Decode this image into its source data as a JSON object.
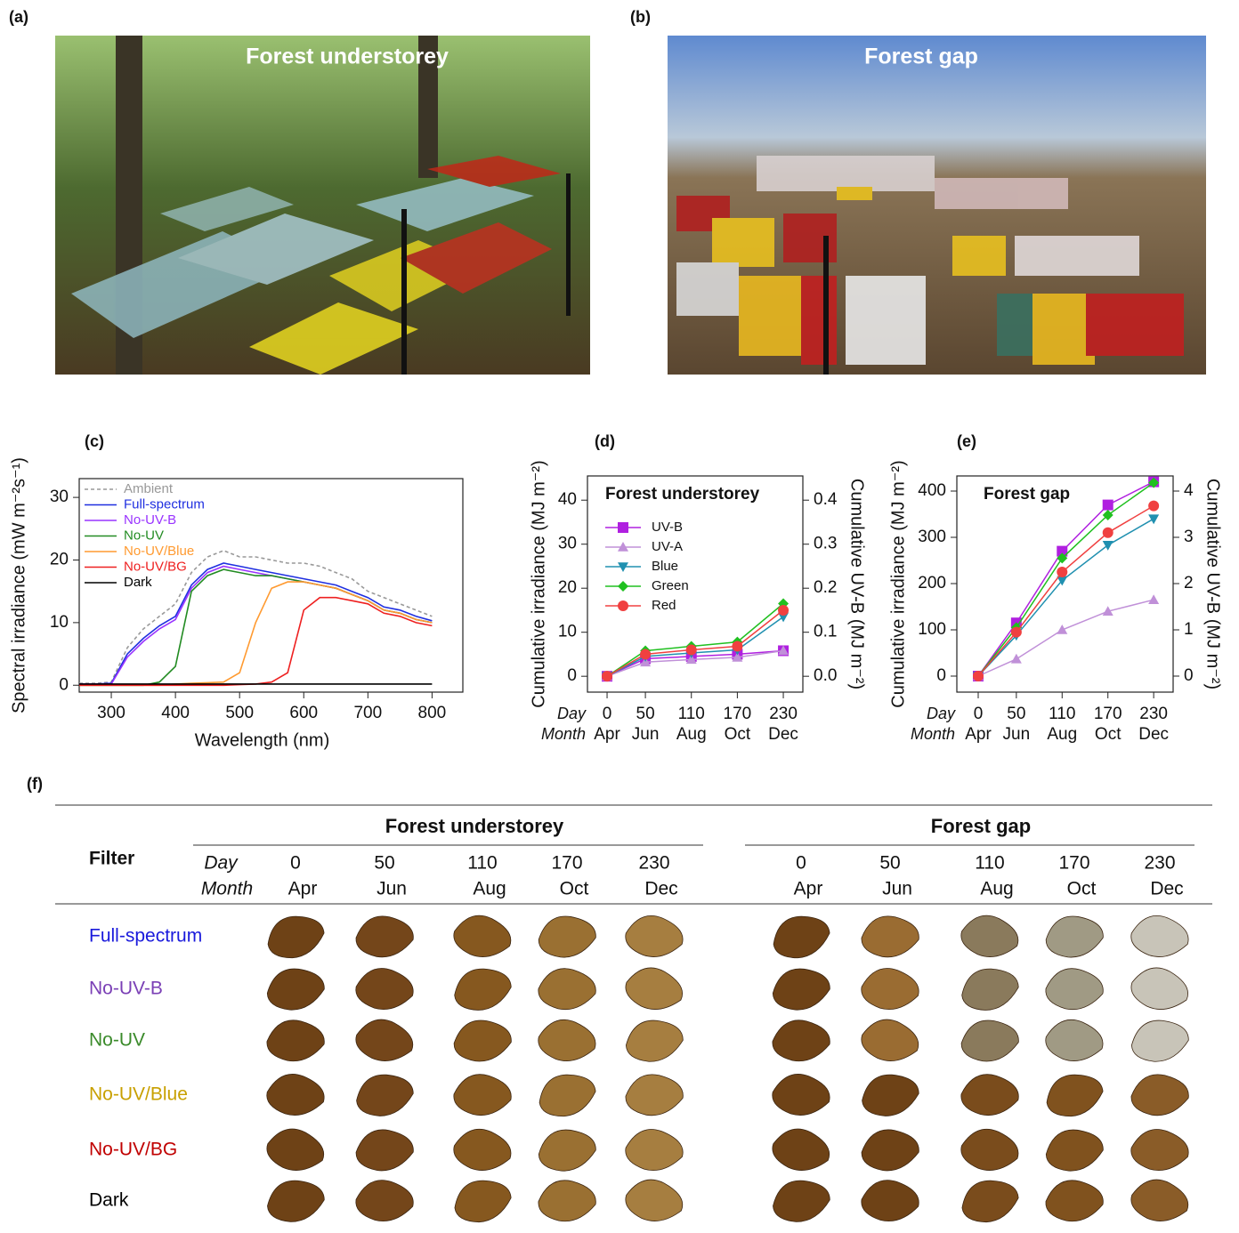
{
  "photos": [
    {
      "label": "(a)",
      "caption": "Forest understorey"
    },
    {
      "label": "(b)",
      "caption": "Forest gap"
    }
  ],
  "chart_data": [
    {
      "type": "line",
      "panel_label": "(c)",
      "xlabel": "Wavelength (nm)",
      "ylabel": "Spectral irradiance (mW m⁻²s⁻¹)",
      "x": [
        250,
        275,
        300,
        325,
        350,
        375,
        400,
        425,
        450,
        475,
        500,
        525,
        550,
        575,
        600,
        625,
        650,
        675,
        700,
        725,
        750,
        775,
        800
      ],
      "xlim": [
        250,
        848
      ],
      "xticks": [
        300,
        400,
        500,
        600,
        700,
        800
      ],
      "ylim": [
        -1.1,
        33
      ],
      "yticks": [
        0,
        10,
        20,
        30
      ],
      "legend": "upper left",
      "series": [
        {
          "name": "Ambient",
          "color": "#999999",
          "dash": true,
          "values": [
            0.3,
            0.3,
            0.5,
            6,
            9,
            11,
            13,
            18,
            20.5,
            21.5,
            20.5,
            20.5,
            20,
            19.5,
            19.5,
            19,
            18,
            17,
            15,
            14,
            13,
            12,
            11
          ]
        },
        {
          "name": "Full-spectrum",
          "color": "#1f2fe0",
          "values": [
            0.2,
            0.2,
            0.3,
            5,
            7.5,
            9.5,
            11,
            16,
            18.5,
            19.5,
            19,
            18.5,
            18,
            17.5,
            17,
            16.5,
            16,
            15,
            14,
            12.5,
            12,
            11,
            10.3
          ]
        },
        {
          "name": "No-UV-B",
          "color": "#9933ff",
          "values": [
            0.2,
            0.2,
            0.2,
            4.5,
            7,
            9,
            10.5,
            15.5,
            18,
            19,
            18.5,
            18,
            17.5,
            17,
            16.5,
            16,
            15.5,
            14.5,
            13.5,
            12,
            11.5,
            10.5,
            10
          ]
        },
        {
          "name": "No-UV",
          "color": "#228b22",
          "values": [
            0,
            0,
            0,
            0,
            0,
            0.5,
            3,
            15,
            17.5,
            18.5,
            18,
            17.5,
            17.5,
            17,
            16.5,
            16,
            15.5,
            14.5,
            13.5,
            12,
            11.5,
            10.5,
            10
          ]
        },
        {
          "name": "No-UV/Blue",
          "color": "#ff9a30",
          "values": [
            0,
            0,
            0,
            0,
            0,
            0,
            0.2,
            0.3,
            0.4,
            0.5,
            2,
            10,
            15.5,
            16.5,
            16.5,
            16,
            15.5,
            14.5,
            13.5,
            12,
            11.5,
            10.5,
            10
          ]
        },
        {
          "name": "No-UV/BG",
          "color": "#ee2020",
          "values": [
            0,
            0,
            0,
            0,
            0,
            0,
            0,
            0,
            0,
            0,
            0.1,
            0.2,
            0.5,
            2,
            12,
            14,
            14,
            13.5,
            13,
            11.5,
            11,
            10,
            9.5
          ]
        },
        {
          "name": "Dark",
          "color": "#000000",
          "values": [
            0.2,
            0.2,
            0.2,
            0.2,
            0.2,
            0.2,
            0.2,
            0.2,
            0.2,
            0.2,
            0.2,
            0.2,
            0.2,
            0.2,
            0.2,
            0.2,
            0.2,
            0.2,
            0.2,
            0.2,
            0.2,
            0.2,
            0.2
          ]
        }
      ]
    },
    {
      "type": "line",
      "panel_label": "(d)",
      "title": "Forest understorey",
      "ylabel": "Cumulative irradiance (MJ m⁻²)",
      "y2label": "Cumulative UV-B (MJ m⁻²)",
      "xtick_row_labels": [
        "Day",
        "Month"
      ],
      "x": [
        0,
        50,
        110,
        170,
        230
      ],
      "xticks": [
        0,
        50,
        110,
        170,
        230
      ],
      "month_labels": [
        "Apr",
        "Jun",
        "Aug",
        "Oct",
        "Dec"
      ],
      "xlim": [
        -25.6,
        255.5
      ],
      "ylim": [
        -3.6,
        45.5
      ],
      "yticks": [
        0,
        10,
        20,
        30,
        40
      ],
      "y2lim": [
        -0.036,
        0.455
      ],
      "y2ticks": [
        {
          "value": 0,
          "label": "0.0"
        },
        0.1,
        0.2,
        0.3,
        0.4
      ],
      "legend": "upper left",
      "series": [
        {
          "name": "UV-B",
          "color": "#b020e0",
          "marker": "square",
          "axis": "y2",
          "values": [
            0,
            0.04,
            0.045,
            0.05,
            0.058
          ]
        },
        {
          "name": "UV-A",
          "color": "#c090d8",
          "marker": "triangle-up",
          "values": [
            0,
            3.2,
            3.8,
            4.3,
            5.8
          ]
        },
        {
          "name": "Blue",
          "color": "#2090b0",
          "marker": "triangle-down",
          "values": [
            0,
            4.5,
            5.3,
            6,
            13.5
          ]
        },
        {
          "name": "Green",
          "color": "#20c020",
          "marker": "diamond",
          "values": [
            0,
            5.8,
            6.8,
            7.8,
            16.5
          ]
        },
        {
          "name": "Red",
          "color": "#f04040",
          "marker": "circle",
          "values": [
            0,
            5,
            6,
            6.8,
            15
          ]
        }
      ]
    },
    {
      "type": "line",
      "panel_label": "(e)",
      "title": "Forest gap",
      "ylabel": "Cumulative irradiance (MJ m⁻²)",
      "y2label": "Cumulative UV-B (MJ m⁻²)",
      "xtick_row_labels": [
        "Day",
        "Month"
      ],
      "x": [
        0,
        50,
        110,
        170,
        230
      ],
      "xticks": [
        0,
        50,
        110,
        170,
        230
      ],
      "month_labels": [
        "Apr",
        "Jun",
        "Aug",
        "Oct",
        "Dec"
      ],
      "xlim": [
        -28,
        255.5
      ],
      "ylim": [
        -34.6,
        432.7
      ],
      "yticks": [
        0,
        100,
        200,
        300,
        400
      ],
      "y2lim": [
        -0.346,
        4.327
      ],
      "y2ticks": [
        0,
        1,
        2,
        3,
        4
      ],
      "legend": null,
      "series": [
        {
          "name": "UV-B",
          "color": "#b020e0",
          "marker": "square",
          "axis": "y2",
          "values": [
            0,
            1.15,
            2.7,
            3.7,
            4.2
          ]
        },
        {
          "name": "UV-A",
          "color": "#c090d8",
          "marker": "triangle-up",
          "values": [
            0,
            37,
            100,
            140,
            165
          ]
        },
        {
          "name": "Blue",
          "color": "#2090b0",
          "marker": "triangle-down",
          "values": [
            0,
            88,
            207,
            283,
            340
          ]
        },
        {
          "name": "Green",
          "color": "#20c020",
          "marker": "diamond",
          "values": [
            0,
            105,
            255,
            348,
            418
          ]
        },
        {
          "name": "Red",
          "color": "#f04040",
          "marker": "circle",
          "values": [
            0,
            95,
            225,
            310,
            368
          ]
        }
      ]
    }
  ],
  "table": {
    "label": "(f)",
    "header": "Filter",
    "day_label": "Day",
    "month_label": "Month",
    "groups": [
      {
        "title": "Forest understorey",
        "days": [
          0,
          50,
          110,
          170,
          230
        ],
        "months": [
          "Apr",
          "Jun",
          "Aug",
          "Oct",
          "Dec"
        ]
      },
      {
        "title": "Forest gap",
        "days": [
          0,
          50,
          110,
          170,
          230
        ],
        "months": [
          "Apr",
          "Jun",
          "Aug",
          "Oct",
          "Dec"
        ]
      }
    ],
    "rows": [
      {
        "filter": "Full-spectrum",
        "color": "#1a1adc"
      },
      {
        "filter": "No-UV-B",
        "color": "#7a3fb5"
      },
      {
        "filter": "No-UV",
        "color": "#3a8a2a"
      },
      {
        "filter": "No-UV/Blue",
        "color": "#c8a000"
      },
      {
        "filter": "No-UV/BG",
        "color": "#c00000"
      },
      {
        "filter": "Dark",
        "color": "#000000"
      }
    ]
  }
}
